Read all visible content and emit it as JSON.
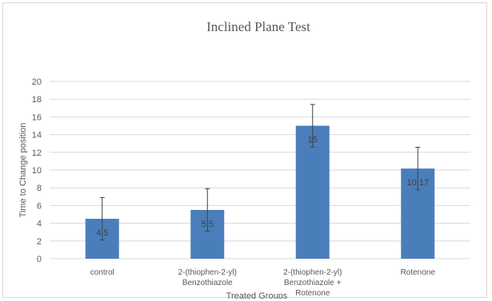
{
  "chart_data": {
    "type": "bar",
    "title": "Inclined Plane Test",
    "xlabel": "Treated Groups",
    "ylabel": "Time to Change position",
    "ylim": [
      0,
      20
    ],
    "yticks": [
      0,
      2,
      4,
      6,
      8,
      10,
      12,
      14,
      16,
      18,
      20
    ],
    "grid": true,
    "categories": [
      [
        "control"
      ],
      [
        "2-(thiophen-2-yl)",
        "Benzothiazole"
      ],
      [
        "2-(thiophen-2-yl)",
        "Benzothiazole +",
        "Rotenone"
      ],
      [
        "Rotenone"
      ]
    ],
    "values": [
      4.5,
      5.5,
      15,
      10.17
    ],
    "data_labels": [
      "4.5",
      "5.5",
      "15",
      "10.17"
    ],
    "error": [
      2.4,
      2.4,
      2.4,
      2.4
    ],
    "colors": {
      "bar": "#4a7ebb",
      "grid": "#d9d9d9",
      "text": "#595959"
    }
  }
}
